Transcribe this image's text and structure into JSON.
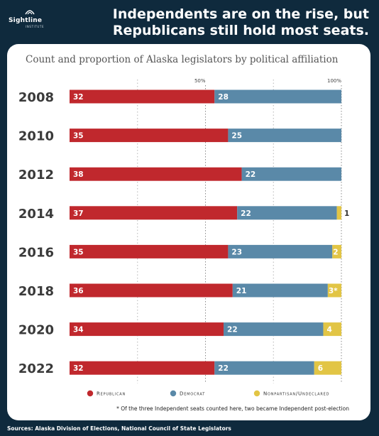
{
  "brand": {
    "logo_text": "Sightline",
    "logo_subtext": "INSTITUTE",
    "colors": {
      "background": "#0f2a3d",
      "card": "#ffffff"
    }
  },
  "headline": "Independents are on the rise, but Republicans still hold most seats.",
  "subtitle": "Count and proportion of Alaska legislators by political affiliation",
  "footnote": "* Of the three Independent seats counted here, two became Independent post-election",
  "sources": "Sources: Alaska Division of Elections, National Council of State Legislators",
  "chart_data": {
    "type": "bar",
    "orientation": "horizontal",
    "stacked": true,
    "normalized_to_percent": true,
    "total_seats": 60,
    "categories": [
      "2008",
      "2010",
      "2012",
      "2014",
      "2016",
      "2018",
      "2020",
      "2022"
    ],
    "series": [
      {
        "name": "Republican",
        "color": "#c0282d",
        "values": [
          32,
          35,
          38,
          37,
          35,
          36,
          34,
          32
        ]
      },
      {
        "name": "Democrat",
        "color": "#5a89a8",
        "values": [
          28,
          25,
          22,
          22,
          23,
          21,
          22,
          22
        ]
      },
      {
        "name": "Nonpartisan/Undeclared",
        "color": "#e2c545",
        "values": [
          0,
          0,
          0,
          1,
          2,
          3,
          4,
          6
        ]
      }
    ],
    "segment_labels": [
      [
        "32",
        "28",
        ""
      ],
      [
        "35",
        "25",
        ""
      ],
      [
        "38",
        "22",
        ""
      ],
      [
        "37",
        "22",
        "1"
      ],
      [
        "35",
        "23",
        "2"
      ],
      [
        "36",
        "21",
        "3*"
      ],
      [
        "34",
        "22",
        "4"
      ],
      [
        "32",
        "22",
        "6"
      ]
    ],
    "reference_lines": [
      {
        "value": 50,
        "label": "50%"
      },
      {
        "value": 100,
        "label": "100%"
      }
    ],
    "minor_gridlines": [
      25,
      75
    ],
    "xlim": [
      0,
      100
    ],
    "legend": {
      "placement": "bottom",
      "entries": [
        "Republican",
        "Democrat",
        "Nonpartisan/Undeclared"
      ]
    }
  }
}
